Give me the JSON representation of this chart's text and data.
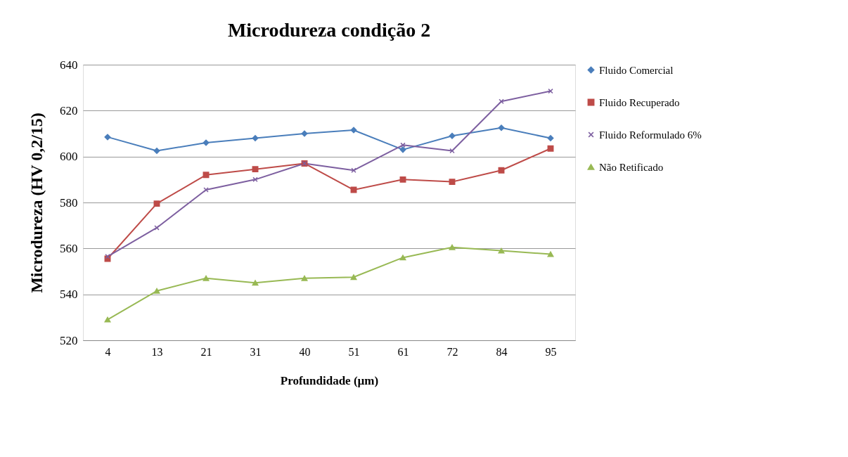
{
  "chart_data": {
    "type": "line",
    "title": "Microdureza  condição 2",
    "xlabel": "Profundidade (µm)",
    "ylabel": "Microdureza  (HV 0,2/15)",
    "categories": [
      "4",
      "13",
      "21",
      "31",
      "40",
      "51",
      "61",
      "72",
      "84",
      "95"
    ],
    "ylim": [
      520,
      640
    ],
    "yticks": [
      520,
      540,
      560,
      580,
      600,
      620,
      640
    ],
    "grid": "y",
    "legend": "right",
    "series": [
      {
        "name": "Fluido Comercial",
        "color": "#4a7ebb",
        "marker": "diamond",
        "values": [
          608.5,
          602.5,
          606,
          608,
          610,
          611.5,
          603,
          609,
          612.5,
          608
        ]
      },
      {
        "name": "Fluido Recuperado",
        "color": "#be4b48",
        "marker": "square",
        "values": [
          555.5,
          579.5,
          592,
          594.5,
          597,
          585.5,
          590,
          589,
          594,
          603.5
        ]
      },
      {
        "name": "Fluido Reformulado 6%",
        "color": "#7d5fa0",
        "marker": "cross",
        "values": [
          556.5,
          569,
          585.5,
          590,
          597,
          594,
          605,
          602.5,
          624,
          628.5
        ]
      },
      {
        "name": "Não Retificado",
        "color": "#98b954",
        "marker": "triangle",
        "values": [
          529,
          541.5,
          547,
          545,
          547,
          547.5,
          556,
          560.5,
          559,
          557.5
        ]
      }
    ]
  }
}
